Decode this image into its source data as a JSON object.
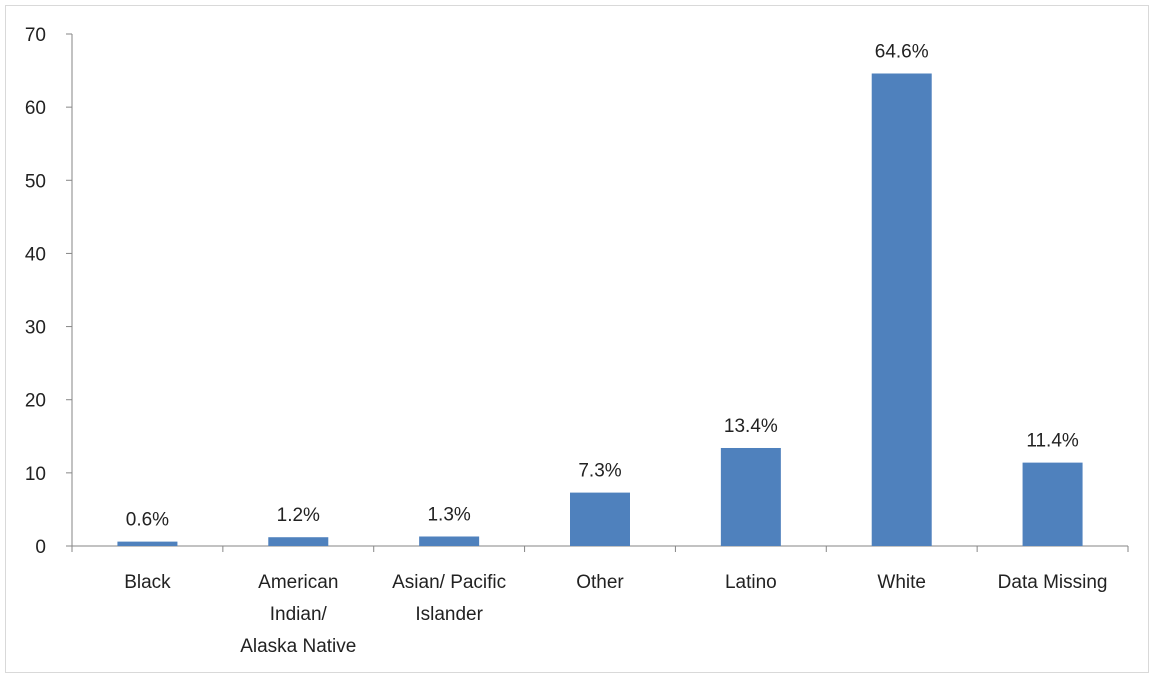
{
  "chart_data": {
    "type": "bar",
    "title": "",
    "xlabel": "",
    "ylabel": "",
    "categories": [
      [
        "Black"
      ],
      [
        "American",
        "Indian/",
        "Alaska Native"
      ],
      [
        "Asian/ Pacific",
        "Islander"
      ],
      [
        "Other"
      ],
      [
        "Latino"
      ],
      [
        "White"
      ],
      [
        "Data Missing"
      ]
    ],
    "values": [
      0.6,
      1.2,
      1.3,
      7.3,
      13.4,
      64.6,
      11.4
    ],
    "data_labels": [
      "0.6%",
      "1.2%",
      "1.3%",
      "7.3%",
      "13.4%",
      "64.6%",
      "11.4%"
    ],
    "ylim": [
      0,
      70
    ],
    "yticks": [
      0,
      10,
      20,
      30,
      40,
      50,
      60,
      70
    ],
    "grid": false,
    "legend": "none",
    "bar_color": "#4f81bd",
    "axis_color": "#868686"
  }
}
